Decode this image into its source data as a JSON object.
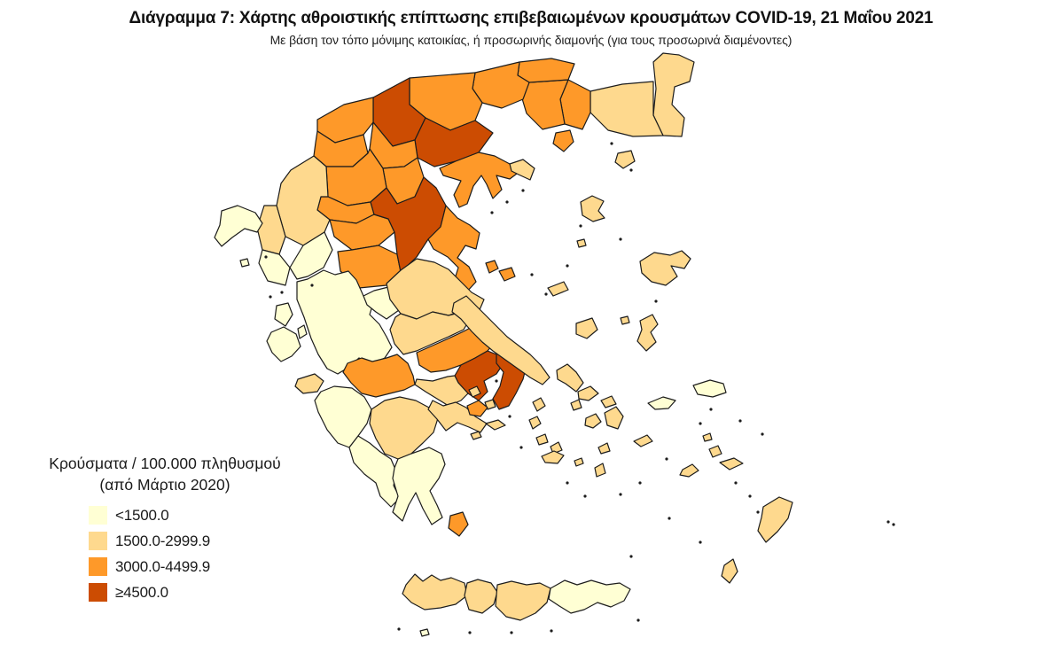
{
  "header": {
    "title": "Διάγραμμα 7: Χάρτης αθροιστικής επίπτωσης επιβεβαιωμένων κρουσμάτων COVID-19, 21 Μαΐου 2021",
    "subtitle": "Με βάση τον τόπο μόνιμης κατοικίας, ή προσωρινής διαμονής (για τους προσωρινά διαμένοντες)"
  },
  "legend": {
    "title_line1": "Κρούσματα / 100.000 πληθυσμού",
    "title_line2": "(από Μάρτιο 2020)",
    "classes": [
      {
        "label": "<1500.0",
        "color": "#ffffd4"
      },
      {
        "label": "1500.0-2999.9",
        "color": "#fed98e"
      },
      {
        "label": "3000.0-4499.9",
        "color": "#fe9929"
      },
      {
        "label": "≥4500.0",
        "color": "#cc4c02"
      }
    ]
  },
  "map": {
    "class_colors": [
      "#ffffd4",
      "#fed98e",
      "#fe9929",
      "#cc4c02"
    ],
    "stroke_color": "#1c1c1c",
    "stroke_width": 1.2,
    "speck_color": "#1c1c1c",
    "regions": [
      {
        "n": "evros",
        "c": 1,
        "p": "737,70 748,60 766,62 783,70 778,92 761,98 758,118 772,133 769,154 748,153 737,130 740,100"
      },
      {
        "n": "rodopi",
        "c": 1,
        "p": "666,103 702,95 737,92 737,130 748,153 714,154 686,147 666,127"
      },
      {
        "n": "xanthi",
        "c": 2,
        "p": "641,90 666,103 666,127 657,146 637,140 632,112"
      },
      {
        "n": "kavala",
        "c": 2,
        "p": "597,93 641,90 632,112 637,140 612,146 594,128 588,108"
      },
      {
        "n": "thasos",
        "c": 2,
        "p": "627,150 643,147 647,160 636,171 624,162"
      },
      {
        "n": "samothraki",
        "c": 1,
        "p": "697,173 712,170 716,182 703,190 694,183"
      },
      {
        "n": "drama",
        "c": 2,
        "p": "586,70 622,66 648,72 641,90 597,93 584,85"
      },
      {
        "n": "serres",
        "c": 2,
        "p": "536,82 586,70 584,85 597,93 590,112 566,122 544,116 533,100"
      },
      {
        "n": "kilkis",
        "c": 2,
        "p": "462,88 536,82 533,100 544,116 536,136 508,147 480,133 462,118"
      },
      {
        "n": "pella",
        "c": 3,
        "p": "421,110 462,88 462,118 480,133 468,158 443,165 421,138"
      },
      {
        "n": "florina",
        "c": 2,
        "p": "358,135 388,118 421,110 421,138 410,152 378,161 358,148"
      },
      {
        "n": "kastoria",
        "c": 2,
        "p": "356,161 358,148 378,161 410,152 415,173 398,188 368,188 354,176"
      },
      {
        "n": "thessaloniki",
        "c": 3,
        "p": "468,158 480,133 508,147 536,136 556,150 540,172 514,182 490,188 471,178"
      },
      {
        "n": "chalkidiki",
        "c": 2,
        "p": "496,190 514,182 540,172 558,176 575,185 583,196 575,202 560,198 566,214 556,224 549,208 543,198 534,210 527,230 518,234 512,220 520,204 500,198"
      },
      {
        "n": "athos",
        "c": 1,
        "p": "575,185 590,180 603,190 598,203 585,197 577,193"
      },
      {
        "n": "imathia",
        "c": 2,
        "p": "421,138 443,165 468,158 471,178 456,188 432,190 417,168"
      },
      {
        "n": "pieria",
        "c": 2,
        "p": "432,190 456,188 471,178 478,200 468,222 448,230 436,212"
      },
      {
        "n": "kozani",
        "c": 2,
        "p": "368,188 398,188 415,173 417,168 432,190 436,212 418,228 392,232 370,222"
      },
      {
        "n": "grevena",
        "c": 2,
        "p": "362,222 370,222 392,232 418,228 422,242 402,252 372,248 358,237"
      },
      {
        "n": "ioannina",
        "c": 1,
        "p": "328,192 354,176 368,188 370,222 362,222 358,237 372,248 366,262 342,277 322,267 312,232 317,207"
      },
      {
        "n": "thesprotia",
        "c": 1,
        "p": "298,232 312,232 322,267 315,287 296,282 290,257"
      },
      {
        "n": "preveza",
        "c": 0,
        "p": "296,282 315,287 327,302 322,322 302,317 292,297"
      },
      {
        "n": "arta",
        "c": 0,
        "p": "327,302 342,277 366,262 375,282 365,302 347,312 335,315"
      },
      {
        "n": "trikala",
        "c": 2,
        "p": "372,248 402,252 422,242 438,247 445,262 427,277 397,282 377,267"
      },
      {
        "n": "karditsa",
        "c": 2,
        "p": "381,284 397,282 427,277 448,287 452,307 436,322 405,325 384,306"
      },
      {
        "n": "larissa",
        "c": 3,
        "p": "418,228 436,212 448,230 468,222 478,200 492,212 503,232 497,256 483,270 470,290 452,307 448,287 445,262 438,247 422,242"
      },
      {
        "n": "magnisia",
        "c": 2,
        "p": "497,256 503,232 516,246 530,254 541,263 537,281 525,277 516,291 529,301 537,318 525,331 512,318 517,302 505,290 489,281 483,270"
      },
      {
        "n": "skiathos",
        "c": 2,
        "p": "548,297 558,294 562,303 552,308"
      },
      {
        "n": "skopelos",
        "c": 2,
        "p": "563,306 577,302 581,312 569,317"
      },
      {
        "n": "alonnisos",
        "c": 1,
        "p": "618,325 636,318 641,327 624,334"
      },
      {
        "n": "skyros",
        "c": 1,
        "p": "650,365 668,359 674,372 662,382 650,377"
      },
      {
        "n": "aetolia_akarnania",
        "c": 0,
        "p": "335,318 347,315 365,305 378,310 393,306 402,316 410,334 421,342 417,355 428,366 436,380 442,392 434,404 420,410 405,404 394,414 381,422 369,416 359,400 351,382 343,358 335,338"
      },
      {
        "n": "evrytania",
        "c": 0,
        "p": "410,334 422,328 438,324 452,332 450,350 436,360 424,352 414,344"
      },
      {
        "n": "fthiotida",
        "c": 1,
        "p": "436,320 452,305 470,292 490,296 506,304 518,316 532,330 546,338 540,352 522,350 506,356 488,352 470,360 452,354 440,338"
      },
      {
        "n": "fokida",
        "c": 1,
        "p": "446,358 452,354 470,360 488,352 506,356 522,352 530,360 523,372 506,380 488,388 470,396 455,400 445,388 440,372"
      },
      {
        "n": "voiotia",
        "c": 2,
        "p": "470,398 488,390 506,382 523,374 538,366 552,372 560,384 550,396 536,404 520,412 503,418 486,420 473,412"
      },
      {
        "n": "attiki_west",
        "c": 3,
        "p": "520,412 536,404 550,396 560,400 568,410 560,422 546,430 550,442 540,452 528,444 517,432 513,424"
      },
      {
        "n": "attiki_east",
        "c": 3,
        "p": "560,400 573,392 586,398 594,412 590,428 582,444 574,458 563,462 556,450 564,436 568,420 560,410"
      },
      {
        "n": "evvoia",
        "c": 1,
        "p": "512,342 526,334 538,346 548,356 560,368 572,380 585,390 598,400 610,412 620,426 612,434 598,426 584,416 570,406 556,396 544,386 532,374 520,360 510,352"
      },
      {
        "n": "korinthia",
        "c": 1,
        "p": "470,428 488,430 505,425 513,424 517,432 528,444 520,452 506,458 493,450 480,442 468,434"
      },
      {
        "n": "achaia",
        "c": 2,
        "p": "392,410 408,404 420,408 436,404 448,400 460,410 466,424 468,434 456,440 440,444 424,448 408,444 396,432 387,420"
      },
      {
        "n": "ilia",
        "c": 0,
        "p": "362,442 377,436 397,438 411,448 419,462 414,478 404,492 394,505 381,500 369,485 359,465 355,452"
      },
      {
        "n": "arkadia",
        "c": 1,
        "p": "419,462 434,452 451,448 469,452 484,460 494,472 489,488 477,500 464,512 449,518 434,512 424,495 417,478"
      },
      {
        "n": "argolida",
        "c": 1,
        "p": "488,452 500,458 514,454 526,460 536,470 549,478 542,488 529,482 516,477 503,486 493,473 483,462"
      },
      {
        "n": "messinia",
        "c": 0,
        "p": "394,505 404,492 417,500 429,510 441,518 447,532 444,548 451,562 441,572 429,560 424,545 411,535 399,522"
      },
      {
        "n": "lakonia",
        "c": 0,
        "p": "449,518 464,512 484,505 498,512 502,524 495,540 485,554 493,570 499,584 487,592 477,574 469,556 461,570 454,588 443,578 449,560 443,540 445,528"
      },
      {
        "n": "kythira",
        "c": 2,
        "p": "508,582 522,578 528,592 518,605 506,596"
      },
      {
        "n": "kerkyra",
        "c": 0,
        "p": "250,238 268,232 288,240 296,252 290,262 276,258 262,268 250,278 242,268 248,254"
      },
      {
        "n": "paxoi",
        "c": 0,
        "p": "271,294 279,292 281,299 273,301"
      },
      {
        "n": "lefkada",
        "c": 0,
        "p": "312,345 325,342 330,355 322,368 310,360"
      },
      {
        "n": "kefalonia",
        "c": 0,
        "p": "306,375 320,369 334,377 339,391 329,402 317,408 307,398 301,385"
      },
      {
        "n": "ithaki",
        "c": 0,
        "p": "336,371 343,367 346,377 338,382"
      },
      {
        "n": "zakynthos",
        "c": 1,
        "p": "336,428 355,422 365,430 358,442 342,444 333,436"
      },
      {
        "n": "chania",
        "c": 1,
        "p": "458,660 468,648 477,656 487,649 497,655 509,652 524,658 527,672 514,682 497,686 479,688 464,680 454,670"
      },
      {
        "n": "rethymno",
        "c": 1,
        "p": "527,658 539,654 554,658 561,668 557,682 544,692 529,688 524,672"
      },
      {
        "n": "irakleio",
        "c": 1,
        "p": "561,660 577,656 594,660 609,658 621,664 617,680 604,692 587,700 571,696 559,684"
      },
      {
        "n": "lasithi",
        "c": 0,
        "p": "621,664 637,655 651,660 667,655 684,660 699,658 711,665 704,678 689,685 674,680 659,688 644,692 631,684 619,676"
      },
      {
        "n": "gavdos",
        "c": 0,
        "p": "474,712 482,710 484,716 476,718"
      },
      {
        "n": "limnos",
        "c": 1,
        "p": "655,228 668,221 681,227 675,238 682,246 669,250 657,243"
      },
      {
        "n": "agios_efstratios",
        "c": 1,
        "p": "651,272 659,270 661,277 653,279"
      },
      {
        "n": "lesvos",
        "c": 1,
        "p": "722,295 738,285 756,288 769,283 779,292 772,303 757,300 764,312 751,322 735,318 724,308"
      },
      {
        "n": "chios",
        "c": 1,
        "p": "722,362 736,355 742,366 734,375 740,386 729,396 719,385 724,372"
      },
      {
        "n": "psara",
        "c": 1,
        "p": "700,359 708,357 710,364 702,366"
      },
      {
        "n": "samos",
        "c": 0,
        "p": "782,435 801,429 816,433 819,443 804,448 787,445"
      },
      {
        "n": "ikaria",
        "c": 0,
        "p": "731,455 748,448 762,452 754,461 739,462"
      },
      {
        "n": "andros",
        "c": 1,
        "p": "628,418 640,411 650,420 658,432 650,442 638,433 629,428"
      },
      {
        "n": "tinos",
        "c": 1,
        "p": "652,442 666,436 675,444 664,452 653,450"
      },
      {
        "n": "mykonos",
        "c": 1,
        "p": "678,452 690,447 695,456 683,460"
      },
      {
        "n": "syros",
        "c": 1,
        "p": "644,455 653,451 656,460 647,463"
      },
      {
        "n": "kea",
        "c": 1,
        "p": "601,454 610,449 615,458 606,464"
      },
      {
        "n": "kythnos",
        "c": 1,
        "p": "597,474 606,470 610,478 601,484"
      },
      {
        "n": "serifos",
        "c": 1,
        "p": "605,494 615,490 618,499 608,502"
      },
      {
        "n": "sifnos",
        "c": 1,
        "p": "621,504 630,499 634,508 624,512"
      },
      {
        "n": "paros",
        "c": 1,
        "p": "661,472 672,467 678,476 669,483 660,480"
      },
      {
        "n": "naxos",
        "c": 1,
        "p": "682,466 695,459 703,470 697,484 685,480"
      },
      {
        "n": "ios",
        "c": 1,
        "p": "675,505 685,500 688,509 678,512"
      },
      {
        "n": "milos",
        "c": 1,
        "p": "611,515 625,509 636,514 629,523 615,522"
      },
      {
        "n": "santorini",
        "c": 1,
        "p": "671,528 680,523 683,534 673,538"
      },
      {
        "n": "amorgos",
        "c": 1,
        "p": "715,498 730,491 736,498 723,504"
      },
      {
        "n": "folegandros",
        "c": 1,
        "p": "648,520 656,517 658,523 650,526"
      },
      {
        "n": "kalymnos",
        "c": 1,
        "p": "800,507 810,503 814,512 804,516"
      },
      {
        "n": "leros",
        "c": 1,
        "p": "793,492 801,489 803,496 795,498"
      },
      {
        "n": "kos",
        "c": 1,
        "p": "812,522 828,517 838,523 823,530"
      },
      {
        "n": "astypalaia",
        "c": 1,
        "p": "770,530 781,524 788,531 777,538 767,536"
      },
      {
        "n": "rodos",
        "c": 1,
        "p": "861,572 879,561 894,567 889,585 877,600 864,612 855,599 859,584"
      },
      {
        "n": "karpathos",
        "c": 1,
        "p": "817,638 827,631 832,645 823,658 814,650"
      },
      {
        "n": "salamina",
        "c": 1,
        "p": "529,440 538,436 542,444 533,448"
      },
      {
        "n": "aigina",
        "c": 1,
        "p": "547,454 556,451 559,459 550,462"
      },
      {
        "n": "troizinia",
        "c": 2,
        "p": "527,458 540,452 550,460 542,470 530,468"
      },
      {
        "n": "hydra",
        "c": 1,
        "p": "548,478 562,474 570,480 558,485"
      },
      {
        "n": "spetses",
        "c": 1,
        "p": "531,490 540,487 543,493 534,496"
      }
    ],
    "specks": [
      [
        300,
        290
      ],
      [
        305,
        335
      ],
      [
        318,
        330
      ],
      [
        352,
        322
      ],
      [
        555,
        240
      ],
      [
        572,
        228
      ],
      [
        590,
        215
      ],
      [
        600,
        310
      ],
      [
        616,
        332
      ],
      [
        640,
        300
      ],
      [
        655,
        255
      ],
      [
        690,
        162
      ],
      [
        712,
        192
      ],
      [
        740,
        340
      ],
      [
        700,
        270
      ],
      [
        560,
        430
      ],
      [
        575,
        470
      ],
      [
        588,
        505
      ],
      [
        640,
        545
      ],
      [
        660,
        560
      ],
      [
        700,
        558
      ],
      [
        722,
        545
      ],
      [
        752,
        518
      ],
      [
        790,
        478
      ],
      [
        802,
        462
      ],
      [
        830,
        545
      ],
      [
        846,
        560
      ],
      [
        855,
        578
      ],
      [
        1002,
        589
      ],
      [
        1008,
        592
      ],
      [
        450,
        710
      ],
      [
        530,
        714
      ],
      [
        577,
        714
      ],
      [
        622,
        712
      ],
      [
        720,
        700
      ],
      [
        835,
        475
      ],
      [
        860,
        490
      ],
      [
        755,
        585
      ],
      [
        790,
        612
      ],
      [
        712,
        628
      ]
    ]
  }
}
